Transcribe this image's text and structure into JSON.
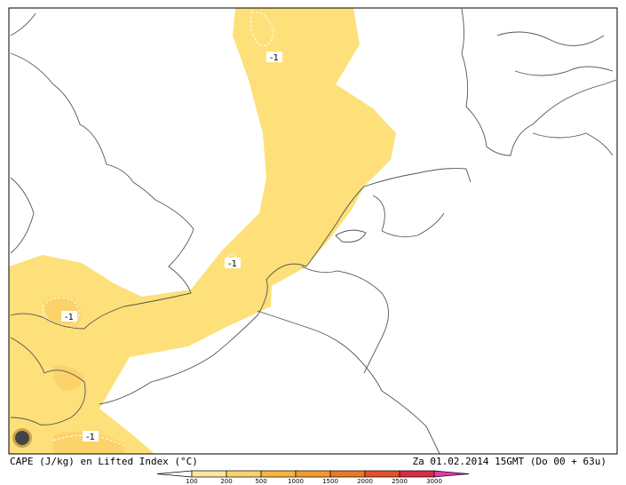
{
  "map": {
    "contour_labels": [
      "-1",
      "-1",
      "-1",
      "-1"
    ],
    "caption_left": "CAPE (J/kg) en Lifted Index (°C)",
    "caption_right": "Za 01.02.2014 15GMT (Do 00 + 63u)",
    "legend": {
      "levels": [
        "100",
        "200",
        "500",
        "1000",
        "1500",
        "2000",
        "2500",
        "3000"
      ],
      "colors": [
        "#ffffff",
        "#fde79c",
        "#fcd36a",
        "#f8b43c",
        "#f39a2a",
        "#ec7724",
        "#e4502a",
        "#dc2a46",
        "#e03aa8"
      ]
    }
  }
}
